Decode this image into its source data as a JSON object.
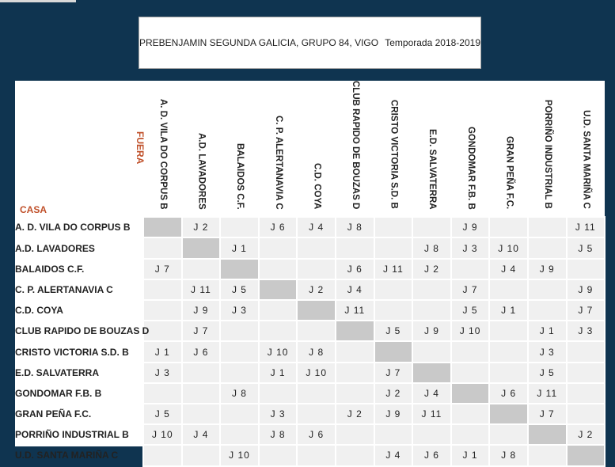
{
  "header": {
    "competition": "PREBENJAMIN SEGUNDA GALICIA, GRUPO 84, VIGO",
    "season": "Temporada 2018-2019"
  },
  "labels": {
    "away": "FUERA",
    "home": "CASA"
  },
  "teams": [
    "A. D. VILA DO CORPUS B",
    "A.D. LAVADORES",
    "BALAIDOS C.F.",
    "C. P. ALERTANAVIA C",
    "C.D. COYA",
    "CLUB RAPIDO DE BOUZAS D",
    "CRISTO VICTORIA S.D. B",
    "E.D. SALVATERRA",
    "GONDOMAR F.B. B",
    "GRAN PEÑA F.C.",
    "PORRIÑO INDUSTRIAL B",
    "U.D. SANTA MARIÑA C"
  ],
  "matrix": [
    [
      "",
      "J 2",
      "",
      "J 6",
      "J 4",
      "J 8",
      "",
      "",
      "J 9",
      "",
      "",
      "J 11"
    ],
    [
      "",
      "",
      "J 1",
      "",
      "",
      "",
      "",
      "J 8",
      "J 3",
      "J 10",
      "",
      "J 5"
    ],
    [
      "J 7",
      "",
      "",
      "",
      "",
      "J 6",
      "J 11",
      "J 2",
      "",
      "J 4",
      "J 9",
      ""
    ],
    [
      "",
      "J 11",
      "J 5",
      "",
      "J 2",
      "J 4",
      "",
      "",
      "J 7",
      "",
      "",
      "J 9"
    ],
    [
      "",
      "J 9",
      "J 3",
      "",
      "",
      "J 11",
      "",
      "",
      "J 5",
      "J 1",
      "",
      "J 7"
    ],
    [
      "",
      "J 7",
      "",
      "",
      "",
      "",
      "J 5",
      "J 9",
      "J 10",
      "",
      "J 1",
      "J 3"
    ],
    [
      "J 1",
      "J 6",
      "",
      "J 10",
      "J 8",
      "",
      "",
      "",
      "",
      "",
      "J 3",
      ""
    ],
    [
      "J 3",
      "",
      "",
      "J 1",
      "J 10",
      "",
      "J 7",
      "",
      "",
      "",
      "J 5",
      ""
    ],
    [
      "",
      "",
      "J 8",
      "",
      "",
      "",
      "J 2",
      "J 4",
      "",
      "J 6",
      "J 11",
      ""
    ],
    [
      "J 5",
      "",
      "",
      "J 3",
      "",
      "J 2",
      "J 9",
      "J 11",
      "",
      "",
      "J 7",
      ""
    ],
    [
      "J 10",
      "J 4",
      "",
      "J 8",
      "J 6",
      "",
      "",
      "",
      "",
      "",
      "",
      "J 2"
    ],
    [
      "",
      "",
      "J 10",
      "",
      "",
      "",
      "J 4",
      "J 6",
      "J 1",
      "J 8",
      "",
      ""
    ]
  ],
  "colors": {
    "background": "#0f3450",
    "label_accent": "#c0502a",
    "cell": "#f0f0f0",
    "diagonal_cell": "#c9c9c9"
  }
}
